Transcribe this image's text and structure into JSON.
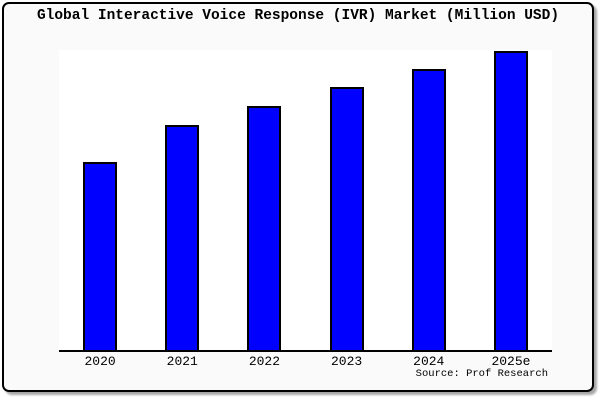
{
  "page": {
    "title": "Global Interactive Voice Response (IVR) Market (Million USD)",
    "source_credit": "Source: Prof Research"
  },
  "chart_data": {
    "type": "bar",
    "title": "Global Interactive Voice Response (IVR) Market (Million USD)",
    "categories": [
      "2020",
      "2021",
      "2022",
      "2023",
      "2024",
      "2025e"
    ],
    "values": [
      188,
      225,
      244,
      263,
      281,
      299
    ],
    "values_note": "Chart shows no y-axis scale or data labels; values are relative bar heights (pixels of a 300px-tall plot), magnitudes only",
    "xlabel": "",
    "ylabel": "",
    "ylim": [
      0,
      300
    ],
    "y_axis_labels": "none",
    "grid": false,
    "legend": "none",
    "source": "Source: Prof Research",
    "bar_color": "#0000ff",
    "bar_edge_color": "#000000"
  },
  "colors": {
    "figure_background": "#fafafa",
    "plot_background": "#ffffff",
    "frame_border": "#000000",
    "axis_line": "#000000",
    "bar_fill": "#0000ff",
    "text": "#000000"
  }
}
